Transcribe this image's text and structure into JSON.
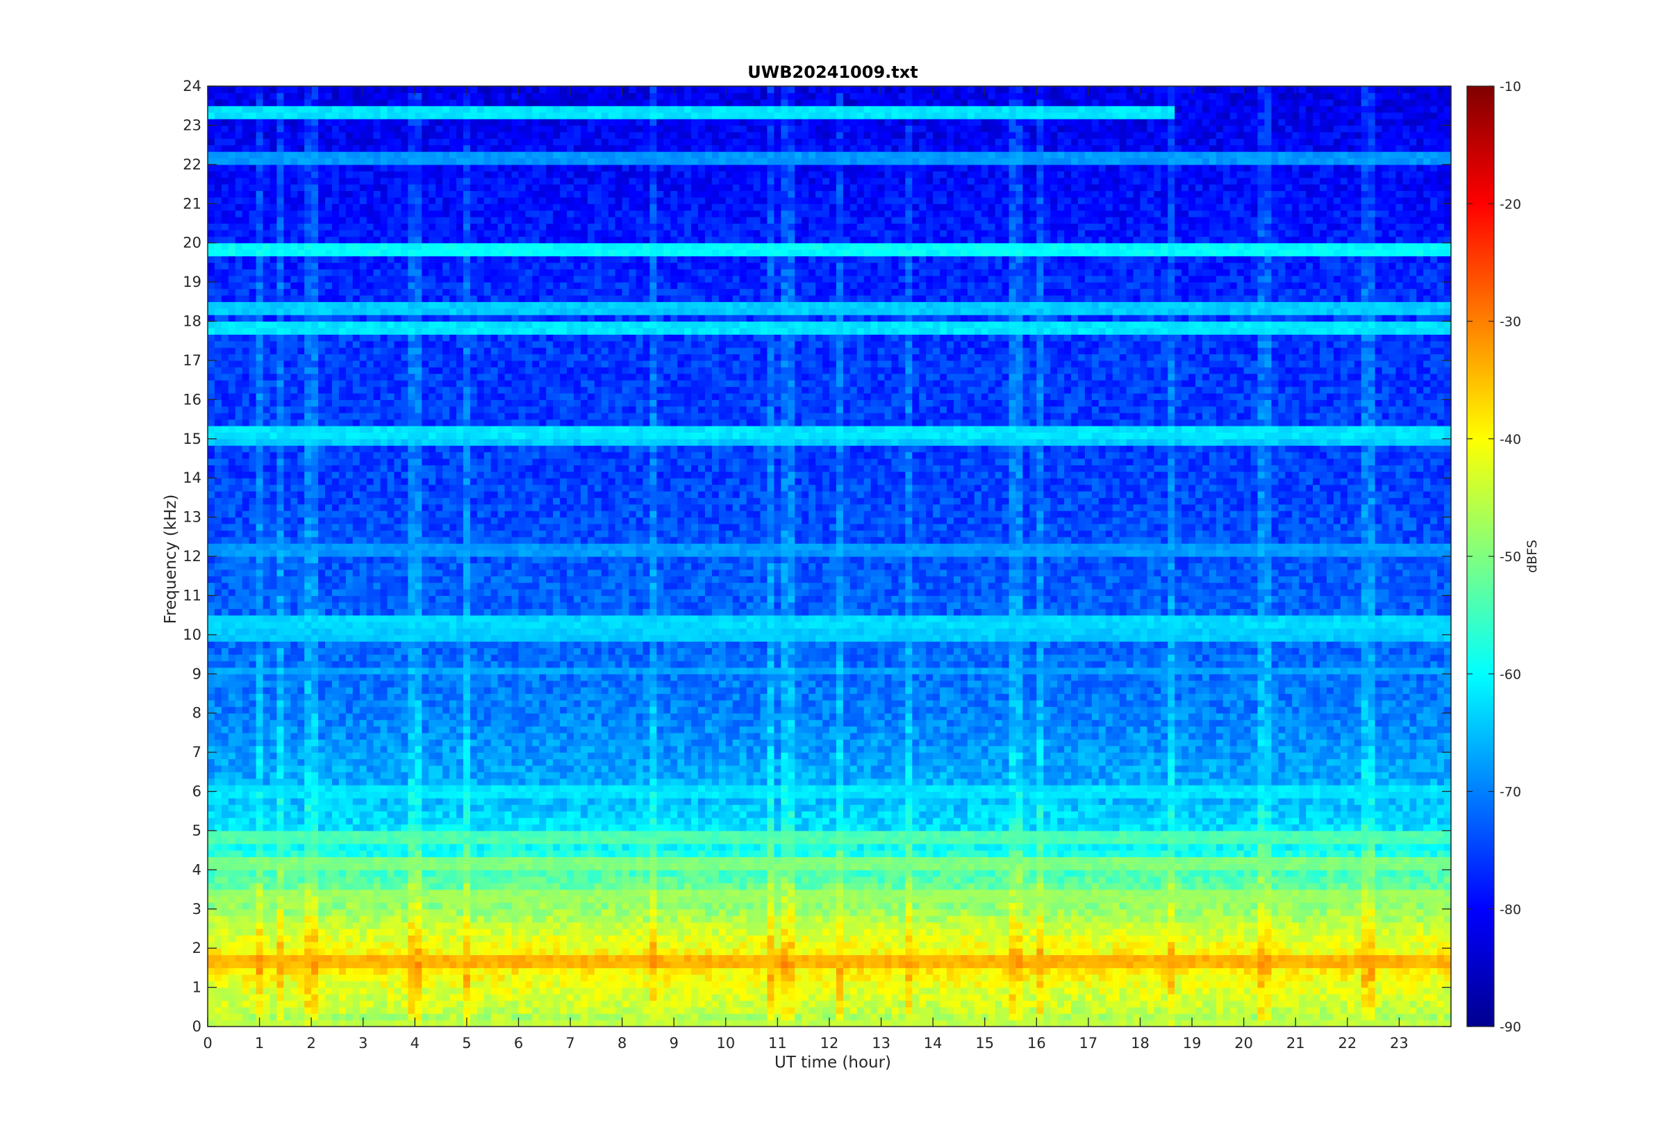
{
  "chart_data": {
    "type": "heatmap",
    "title": "UWB20241009.txt",
    "xlabel": "UT time (hour)",
    "ylabel": "Frequency (kHz)",
    "xlim": [
      0,
      24
    ],
    "ylim": [
      0,
      24
    ],
    "x_ticks": [
      0,
      1,
      2,
      3,
      4,
      5,
      6,
      7,
      8,
      9,
      10,
      11,
      12,
      13,
      14,
      15,
      16,
      17,
      18,
      19,
      20,
      21,
      22,
      23
    ],
    "y_ticks": [
      0,
      1,
      2,
      3,
      4,
      5,
      6,
      7,
      8,
      9,
      10,
      11,
      12,
      13,
      14,
      15,
      16,
      17,
      18,
      19,
      20,
      21,
      22,
      23,
      24
    ],
    "colormap": "jet",
    "colorbar": {
      "label": "dBFS",
      "range": [
        -90,
        -10
      ],
      "ticks": [
        -90,
        -80,
        -70,
        -60,
        -50,
        -40,
        -30,
        -20,
        -10
      ]
    },
    "background_profile": [
      {
        "f": 0.0,
        "db": -52
      },
      {
        "f": 0.3,
        "db": -45
      },
      {
        "f": 1.0,
        "db": -42
      },
      {
        "f": 1.6,
        "db": -38
      },
      {
        "f": 2.2,
        "db": -42
      },
      {
        "f": 3.0,
        "db": -48
      },
      {
        "f": 4.0,
        "db": -55
      },
      {
        "f": 5.0,
        "db": -62
      },
      {
        "f": 6.0,
        "db": -66
      },
      {
        "f": 8.0,
        "db": -70
      },
      {
        "f": 10.0,
        "db": -72
      },
      {
        "f": 14.0,
        "db": -75
      },
      {
        "f": 18.0,
        "db": -76
      },
      {
        "f": 21.0,
        "db": -79
      },
      {
        "f": 24.0,
        "db": -82
      }
    ],
    "spectral_lines": [
      {
        "f": 19.8,
        "db": -60,
        "t_start": 0,
        "t_end": 24
      },
      {
        "f": 18.3,
        "db": -64,
        "t_start": 0,
        "t_end": 24
      },
      {
        "f": 17.8,
        "db": -62,
        "t_start": 0,
        "t_end": 24
      },
      {
        "f": 23.4,
        "db": -62,
        "t_start": 0,
        "t_end": 18.6
      },
      {
        "f": 22.2,
        "db": -68,
        "t_start": 0,
        "t_end": 24
      },
      {
        "f": 15.2,
        "db": -62,
        "t_start": 0,
        "t_end": 24
      },
      {
        "f": 14.9,
        "db": -64,
        "t_start": 0,
        "t_end": 24
      },
      {
        "f": 12.2,
        "db": -68,
        "t_start": 0,
        "t_end": 24
      },
      {
        "f": 10.3,
        "db": -63,
        "t_start": 0,
        "t_end": 24
      },
      {
        "f": 10.0,
        "db": -64,
        "t_start": 0,
        "t_end": 24
      },
      {
        "f": 9.1,
        "db": -67,
        "t_start": 0,
        "t_end": 24
      },
      {
        "f": 6.0,
        "db": -62,
        "t_start": 0,
        "t_end": 24
      },
      {
        "f": 4.8,
        "db": -54,
        "t_start": 0,
        "t_end": 24
      },
      {
        "f": 4.2,
        "db": -50,
        "t_start": 0,
        "t_end": 24
      },
      {
        "f": 3.3,
        "db": -48,
        "t_start": 0,
        "t_end": 24
      },
      {
        "f": 2.5,
        "db": -46,
        "t_start": 0,
        "t_end": 24
      },
      {
        "f": 1.6,
        "db": -34,
        "t_start": 0,
        "t_end": 24
      },
      {
        "f": 0.1,
        "db": -45,
        "t_start": 0,
        "t_end": 24
      }
    ],
    "broadband_events_hour": [
      0.95,
      1.4,
      2.0,
      4.0,
      5.0,
      8.6,
      10.9,
      11.2,
      12.2,
      13.5,
      15.6,
      16.1,
      18.6,
      20.4,
      22.4
    ]
  }
}
